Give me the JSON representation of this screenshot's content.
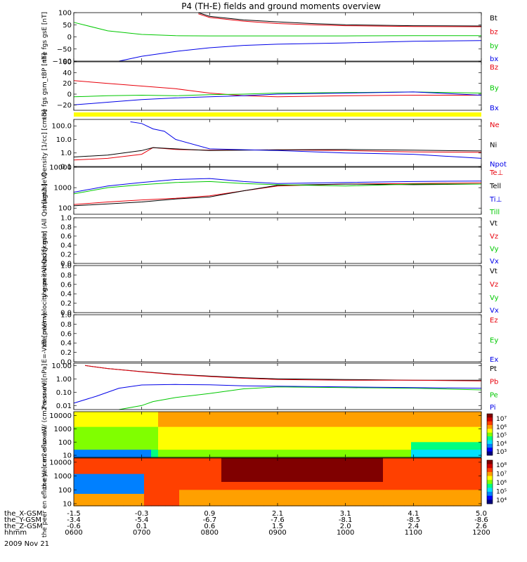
{
  "title": "P4 (TH-E) fields and ground moments overview",
  "date_label": "2009 Nov 21",
  "colors": {
    "black": "#000000",
    "red": "#e8000b",
    "green": "#00c800",
    "blue": "#0000e8",
    "yellow": "#ffff00"
  },
  "time_axis": {
    "start": "0600",
    "end": "1200"
  },
  "chart_data": [
    {
      "type": "line",
      "ylabel": "the fgs gsE [nT]",
      "ylim": [
        -100,
        100
      ],
      "yticks": [
        "100",
        "50",
        "0",
        "−50",
        "−100"
      ],
      "legend": [
        "Bt",
        "bz",
        "by",
        "bx"
      ],
      "series": [
        {
          "name": "Bt",
          "color": "#000000",
          "x": [
            "0750",
            "0800",
            "0830",
            "0900",
            "0930",
            "1000",
            "1100",
            "1200"
          ],
          "y": [
            100,
            85,
            70,
            62,
            55,
            50,
            46,
            45
          ]
        },
        {
          "name": "bz",
          "color": "#e8000b",
          "x": [
            "0750",
            "0800",
            "0830",
            "0900",
            "0930",
            "1000",
            "1100",
            "1200"
          ],
          "y": [
            95,
            80,
            65,
            55,
            50,
            46,
            43,
            42
          ]
        },
        {
          "name": "by",
          "color": "#00c800",
          "x": [
            "0600",
            "0630",
            "0700",
            "0730",
            "0800",
            "0900",
            "1000",
            "1100",
            "1200"
          ],
          "y": [
            60,
            25,
            10,
            5,
            4,
            4,
            4,
            5,
            5
          ]
        },
        {
          "name": "bx",
          "color": "#0000e8",
          "x": [
            "0640",
            "0700",
            "0730",
            "0800",
            "0830",
            "0900",
            "1000",
            "1100",
            "1200"
          ],
          "y": [
            -100,
            -80,
            -60,
            -45,
            -35,
            -30,
            -25,
            -18,
            -15
          ]
        }
      ]
    },
    {
      "type": "line",
      "ylabel": "the fgs gsm_tBP [nT]",
      "ylim": [
        -30,
        60
      ],
      "yticks": [
        "60",
        "40",
        "20",
        "0",
        "−20"
      ],
      "legend": [
        "Bz",
        "By",
        "Bx"
      ],
      "series": [
        {
          "name": "Bz",
          "color": "#e8000b",
          "x": [
            "0600",
            "0630",
            "0700",
            "0730",
            "0800",
            "0830",
            "0900",
            "1000",
            "1100",
            "1200"
          ],
          "y": [
            25,
            20,
            15,
            10,
            2,
            -3,
            -5,
            -3,
            -2,
            -2
          ]
        },
        {
          "name": "By",
          "color": "#00c800",
          "x": [
            "0600",
            "0630",
            "0700",
            "0730",
            "0800",
            "0830",
            "0900",
            "1000",
            "1100",
            "1200"
          ],
          "y": [
            -5,
            -3,
            -2,
            -3,
            -1,
            0,
            2,
            3,
            4,
            2
          ]
        },
        {
          "name": "Bx",
          "color": "#0000e8",
          "x": [
            "0600",
            "0630",
            "0700",
            "0730",
            "0800",
            "0830",
            "0900",
            "1000",
            "1100",
            "1200"
          ],
          "y": [
            -20,
            -15,
            -10,
            -7,
            -5,
            -3,
            0,
            2,
            4,
            -2
          ]
        }
      ]
    },
    {
      "type": "line",
      "ylabel": "Density [1/cc] [cm-3]",
      "ylim": [
        0.1,
        300
      ],
      "log": true,
      "yticks": [
        "100.0",
        "10.0",
        "1.0",
        "0.1"
      ],
      "legend": [
        "Ne",
        "Ni",
        "Npot"
      ],
      "series": [
        {
          "name": "Ne",
          "color": "#e8000b",
          "x": [
            "0600",
            "0630",
            "0700",
            "0710",
            "0730",
            "0800",
            "0900",
            "1000",
            "1100",
            "1200"
          ],
          "y": [
            0.3,
            0.4,
            0.8,
            2.5,
            1.8,
            1.6,
            1.7,
            1.5,
            1.2,
            1.1
          ]
        },
        {
          "name": "Ni",
          "color": "#000000",
          "x": [
            "0600",
            "0630",
            "0700",
            "0710",
            "0730",
            "0800",
            "0900",
            "1000",
            "1100",
            "1200"
          ],
          "y": [
            0.5,
            0.7,
            1.5,
            2.5,
            2,
            1.5,
            1.7,
            1.8,
            1.6,
            1.4
          ]
        },
        {
          "name": "Npot",
          "color": "#0000e8",
          "x": [
            "0650",
            "0700",
            "0710",
            "0720",
            "0730",
            "0800",
            "0900",
            "1000",
            "1100",
            "1200"
          ],
          "y": [
            200,
            150,
            60,
            40,
            10,
            2,
            1.5,
            1,
            0.8,
            0.4
          ]
        }
      ]
    },
    {
      "type": "line",
      "ylabel": "magt3 [eV]",
      "ylim": [
        50,
        10000
      ],
      "log": true,
      "yticks": [
        "10000",
        "1000",
        "100"
      ],
      "legend": [
        "Te⊥",
        "Tell",
        "Ti⊥",
        "Till"
      ],
      "series": [
        {
          "name": "Te⊥",
          "color": "#e8000b",
          "x": [
            "0600",
            "0630",
            "0700",
            "0730",
            "0800",
            "0830",
            "0900",
            "1000",
            "1100",
            "1200"
          ],
          "y": [
            150,
            200,
            250,
            300,
            400,
            700,
            1200,
            1500,
            1600,
            1700
          ]
        },
        {
          "name": "Tell",
          "color": "#000000",
          "x": [
            "0600",
            "0630",
            "0700",
            "0730",
            "0800",
            "0830",
            "0900",
            "1000",
            "1100",
            "1200"
          ],
          "y": [
            130,
            160,
            200,
            280,
            350,
            700,
            1300,
            1500,
            1400,
            1500
          ]
        },
        {
          "name": "Ti⊥",
          "color": "#0000e8",
          "x": [
            "0600",
            "0630",
            "0700",
            "0730",
            "0800",
            "0830",
            "0900",
            "1000",
            "1100",
            "1200"
          ],
          "y": [
            600,
            1200,
            1800,
            2500,
            2800,
            2000,
            1600,
            1800,
            2000,
            2100
          ]
        },
        {
          "name": "Till",
          "color": "#00c800",
          "x": [
            "0600",
            "0630",
            "0700",
            "0730",
            "0800",
            "0830",
            "0900",
            "1000",
            "1100",
            "1200"
          ],
          "y": [
            500,
            1000,
            1400,
            1800,
            2000,
            1600,
            1400,
            1200,
            1500,
            1500
          ]
        }
      ]
    },
    {
      "type": "line",
      "ylabel": "the peir velocity gsm (All Qs) [km/s]",
      "ylim": [
        0,
        1
      ],
      "yticks": [
        "1.0",
        "0.8",
        "0.6",
        "0.4",
        "0.2",
        "0.0"
      ],
      "legend": [
        "Vt",
        "Vz",
        "Vy",
        "Vx"
      ],
      "series": []
    },
    {
      "type": "line",
      "ylabel": "the peer velocity gsm (All Qs) [km/s]",
      "ylim": [
        0,
        1
      ],
      "yticks": [
        "1.0",
        "0.8",
        "0.6",
        "0.4",
        "0.2",
        "0.0"
      ],
      "legend": [
        "Vt",
        "Vz",
        "Vy",
        "Vx"
      ],
      "series": []
    },
    {
      "type": "line",
      "ylabel": "E=-VxB [mV/m]",
      "ylim": [
        0,
        1
      ],
      "yticks": [
        "1.0",
        "0.8",
        "0.6",
        "0.4",
        "0.2",
        "0.0"
      ],
      "legend": [
        "Ez",
        "Ey",
        "Ex"
      ],
      "series": []
    },
    {
      "type": "line",
      "ylabel": "Pressure [nPa]",
      "ylim": [
        0.005,
        15
      ],
      "log": true,
      "yticks": [
        "10.00",
        "1.00",
        "0.10",
        "0.01"
      ],
      "legend": [
        "Pt",
        "Pb",
        "Pe",
        "Pi"
      ],
      "series": [
        {
          "name": "Pt",
          "color": "#000000",
          "x": [
            "0610",
            "0630",
            "0700",
            "0730",
            "0800",
            "0830",
            "0900",
            "1000",
            "1100",
            "1200"
          ],
          "y": [
            10,
            6,
            3.5,
            2.2,
            1.6,
            1.2,
            1.0,
            0.9,
            0.8,
            0.8
          ]
        },
        {
          "name": "Pb",
          "color": "#e8000b",
          "x": [
            "0610",
            "0630",
            "0700",
            "0730",
            "0800",
            "0830",
            "0900",
            "1000",
            "1100",
            "1200"
          ],
          "y": [
            10,
            6,
            3.4,
            2.1,
            1.5,
            1.1,
            0.9,
            0.8,
            0.8,
            0.7
          ]
        },
        {
          "name": "Pe",
          "color": "#00c800",
          "x": [
            "0640",
            "0700",
            "0710",
            "0730",
            "0800",
            "0830",
            "0900",
            "1000",
            "1100",
            "1200"
          ],
          "y": [
            0.005,
            0.01,
            0.02,
            0.04,
            0.08,
            0.18,
            0.25,
            0.22,
            0.2,
            0.15
          ]
        },
        {
          "name": "Pi",
          "color": "#0000e8",
          "x": [
            "0600",
            "0620",
            "0640",
            "0700",
            "0730",
            "0800",
            "0830",
            "0900",
            "1000",
            "1100",
            "1200"
          ],
          "y": [
            0.015,
            0.05,
            0.2,
            0.35,
            0.38,
            0.36,
            0.3,
            0.28,
            0.25,
            0.22,
            0.2
          ]
        }
      ]
    },
    {
      "type": "heatmap",
      "ylabel": "the peir en eflux eV/ (cm2-s-sr-eV)",
      "ylim": [
        7,
        20000
      ],
      "log": true,
      "yticks": [
        "10000",
        "1000",
        "100",
        "10"
      ],
      "colorbar_ticks": [
        "10⁷",
        "10⁶",
        "10⁵",
        "10⁴",
        "10³"
      ],
      "colorbar_exp": [
        7,
        6,
        5,
        4,
        3
      ]
    },
    {
      "type": "heatmap",
      "ylabel": "the peer en eflux eV/ (cm2-s-sr-eV)",
      "ylim": [
        7,
        20000
      ],
      "log": true,
      "yticks": [
        "10000",
        "1000",
        "100",
        "10"
      ],
      "colorbar_ticks": [
        "10⁸",
        "10⁷",
        "10⁶",
        "10⁵",
        "10⁴"
      ],
      "colorbar_exp": [
        8,
        7,
        6,
        5,
        4
      ]
    }
  ],
  "footer": {
    "row_labels": [
      "the_X-GSM",
      "the_Y-GSM",
      "the_Z-GSM",
      "hhmm"
    ],
    "columns": [
      [
        "-1.5",
        "-3.4",
        "-0.6",
        "0600"
      ],
      [
        "-0.3",
        "-5.4",
        "0.1",
        "0700"
      ],
      [
        "0.9",
        "-6.7",
        "0.6",
        "0800"
      ],
      [
        "2.1",
        "-7.6",
        "1.5",
        "0900"
      ],
      [
        "3.1",
        "-8.1",
        "2.0",
        "1000"
      ],
      [
        "4.1",
        "-8.5",
        "2.4",
        "1100"
      ],
      [
        "5.0",
        "-8.6",
        "2.6",
        "1200"
      ]
    ]
  }
}
